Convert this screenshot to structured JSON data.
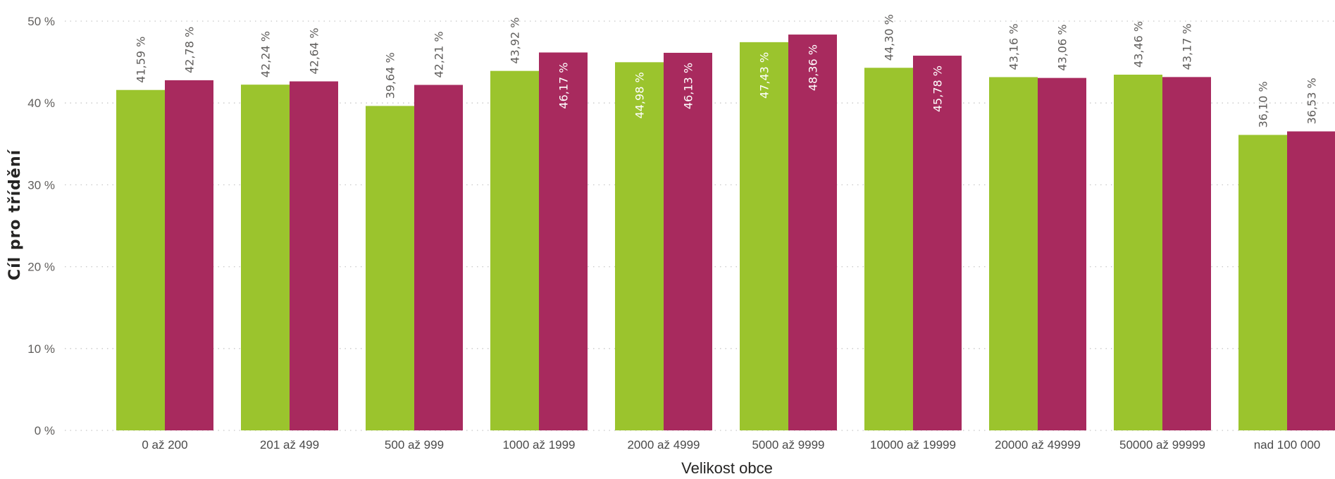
{
  "chart_data": {
    "type": "bar",
    "xlabel": "Velikost obce",
    "ylabel": "Cíl pro třídění",
    "ylim": [
      0,
      50
    ],
    "y_ticks": [
      0,
      10,
      20,
      30,
      40,
      50
    ],
    "y_tick_labels": [
      "0 %",
      "10 %",
      "20 %",
      "30 %",
      "40 %",
      "50 %"
    ],
    "grid": true,
    "categories": [
      "0 až 200",
      "201 až 499",
      "500 až 999",
      "1000 až 1999",
      "2000 až 4999",
      "5000 až 9999",
      "10000 až 19999",
      "20000 až 49999",
      "50000 až 99999",
      "nad 100 000"
    ],
    "series": [
      {
        "color": "#9bc42d",
        "values": [
          41.59,
          42.24,
          39.64,
          43.92,
          44.98,
          47.43,
          44.3,
          43.16,
          43.46,
          36.1
        ],
        "labels": [
          "41,59 %",
          "42,24 %",
          "39,64 %",
          "43,92 %",
          "44,98 %",
          "47,43 %",
          "44,30 %",
          "43,16 %",
          "43,46 %",
          "36,10 %"
        ],
        "label_inside": [
          false,
          false,
          false,
          false,
          true,
          true,
          false,
          false,
          false,
          false
        ]
      },
      {
        "color": "#a82a5e",
        "values": [
          42.78,
          42.64,
          42.21,
          46.17,
          46.13,
          48.36,
          45.78,
          43.06,
          43.17,
          36.53
        ],
        "labels": [
          "42,78 %",
          "42,64 %",
          "42,21 %",
          "46,17 %",
          "46,13 %",
          "48,36 %",
          "45,78 %",
          "43,06 %",
          "43,17 %",
          "36,53 %"
        ],
        "label_inside": [
          false,
          false,
          false,
          true,
          true,
          true,
          true,
          false,
          false,
          false
        ]
      }
    ]
  }
}
